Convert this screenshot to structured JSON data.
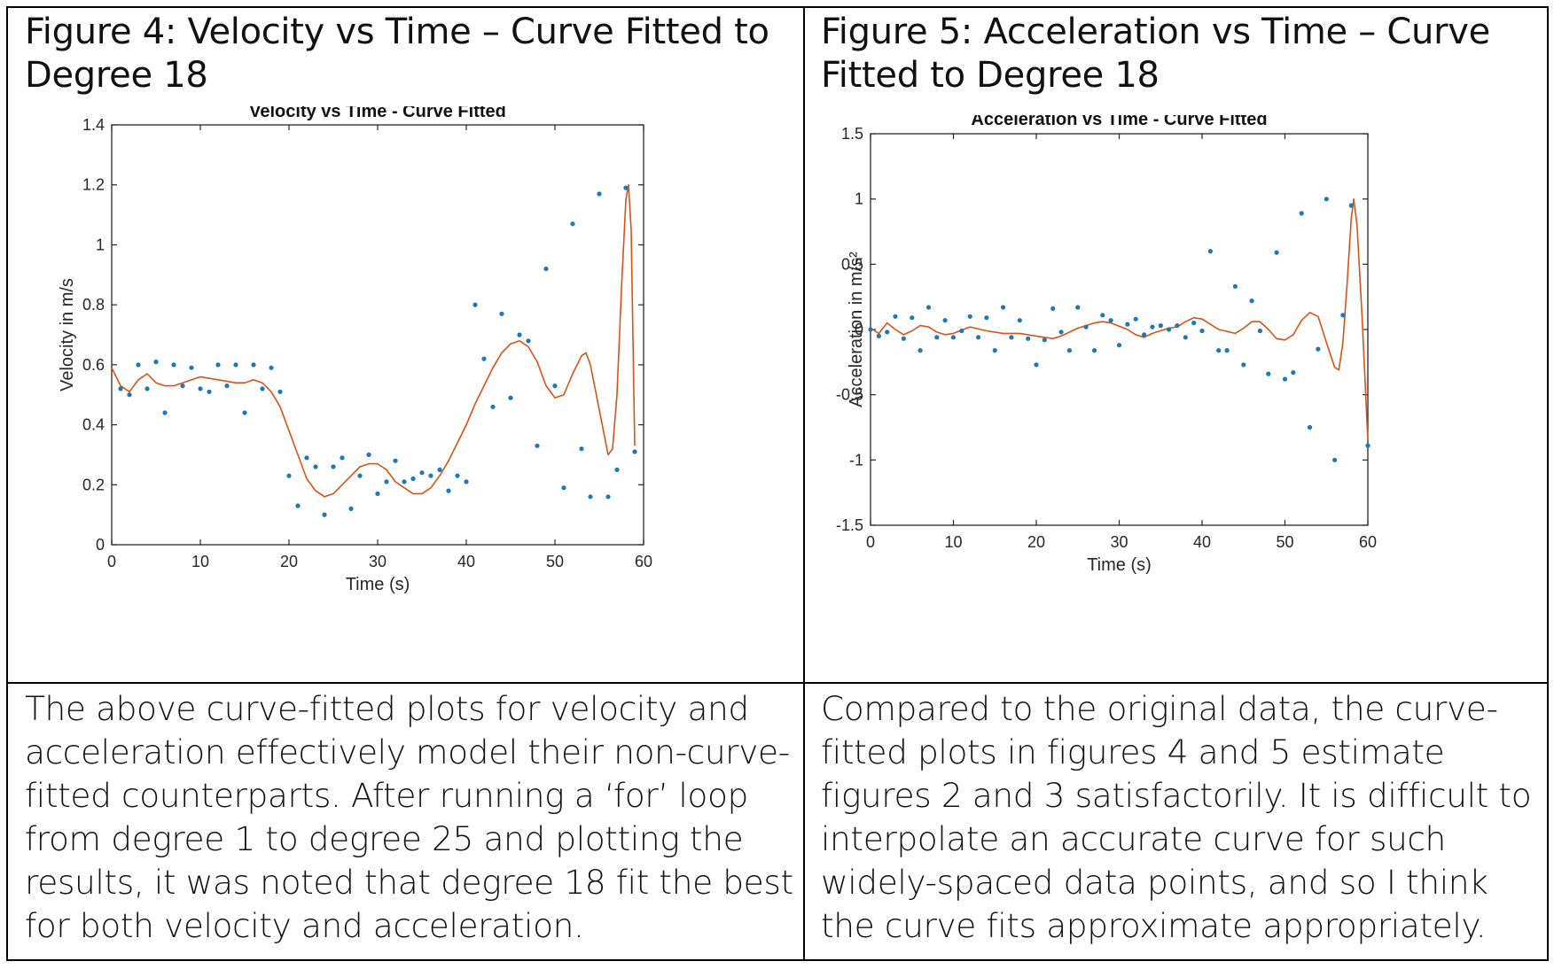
{
  "figure4": {
    "heading": "Figure 4: Velocity vs Time – Curve Fitted to Degree 18"
  },
  "figure5": {
    "heading": "Figure 5: Acceleration vs Time – Curve Fitted to Degree 18"
  },
  "text_left": "The above curve-fitted plots for velocity and acceleration effectively model their non-curve-fitted counterparts. After running a ‘for’ loop from degree 1 to degree 25 and plotting the results, it was noted that degree 18 fit the best for both velocity and acceleration.",
  "text_right": "Compared to the original data, the curve-fitted plots in figures 4 and 5 estimate figures 2 and 3 satisfactorily. It is difficult to interpolate an accurate curve for such widely-spaced data points, and so I think the curve fits approximate appropriately.",
  "colors": {
    "points": "#1f77b4",
    "curve": "#d95319",
    "axis": "#262626",
    "border": "#000000"
  },
  "chart_data": [
    {
      "type": "scatter",
      "title": "Velocity vs Time - Curve Fitted",
      "xlabel": "Time (s)",
      "ylabel": "Velocity in m/s",
      "xlim": [
        0,
        60
      ],
      "ylim": [
        0,
        1.4
      ],
      "xticks": [
        0,
        10,
        20,
        30,
        40,
        50,
        60
      ],
      "yticks": [
        0,
        0.2,
        0.4,
        0.6,
        0.8,
        1,
        1.2,
        1.4
      ],
      "ytick_labels": [
        "0",
        "0.2",
        "0.4",
        "0.6",
        "0.8",
        "1",
        "1.2",
        "1.4"
      ],
      "grid": false,
      "legend": "none",
      "points": [
        [
          1,
          0.52
        ],
        [
          2,
          0.5
        ],
        [
          3,
          0.6
        ],
        [
          4,
          0.52
        ],
        [
          5,
          0.61
        ],
        [
          6,
          0.44
        ],
        [
          7,
          0.6
        ],
        [
          8,
          0.53
        ],
        [
          9,
          0.59
        ],
        [
          10,
          0.52
        ],
        [
          11,
          0.51
        ],
        [
          12,
          0.6
        ],
        [
          13,
          0.53
        ],
        [
          14,
          0.6
        ],
        [
          15,
          0.44
        ],
        [
          16,
          0.6
        ],
        [
          17,
          0.52
        ],
        [
          18,
          0.59
        ],
        [
          19,
          0.51
        ],
        [
          20,
          0.23
        ],
        [
          21,
          0.13
        ],
        [
          22,
          0.29
        ],
        [
          23,
          0.26
        ],
        [
          24,
          0.1
        ],
        [
          25,
          0.26
        ],
        [
          26,
          0.29
        ],
        [
          27,
          0.12
        ],
        [
          28,
          0.23
        ],
        [
          29,
          0.3
        ],
        [
          30,
          0.17
        ],
        [
          31,
          0.21
        ],
        [
          32,
          0.28
        ],
        [
          33,
          0.21
        ],
        [
          34,
          0.22
        ],
        [
          35,
          0.24
        ],
        [
          36,
          0.23
        ],
        [
          37,
          0.25
        ],
        [
          38,
          0.18
        ],
        [
          39,
          0.23
        ],
        [
          40,
          0.21
        ],
        [
          41,
          0.8
        ],
        [
          42,
          0.62
        ],
        [
          43,
          0.46
        ],
        [
          44,
          0.77
        ],
        [
          45,
          0.49
        ],
        [
          46,
          0.7
        ],
        [
          47,
          0.68
        ],
        [
          48,
          0.33
        ],
        [
          49,
          0.92
        ],
        [
          50,
          0.53
        ],
        [
          51,
          0.19
        ],
        [
          52,
          1.07
        ],
        [
          53,
          0.32
        ],
        [
          54,
          0.16
        ],
        [
          55,
          1.17
        ],
        [
          56,
          0.16
        ],
        [
          57,
          0.25
        ],
        [
          58,
          1.19
        ],
        [
          59,
          0.31
        ]
      ],
      "fit_curve": [
        [
          0,
          0.59
        ],
        [
          1,
          0.53
        ],
        [
          2,
          0.51
        ],
        [
          3,
          0.55
        ],
        [
          4,
          0.57
        ],
        [
          5,
          0.54
        ],
        [
          6,
          0.53
        ],
        [
          7,
          0.53
        ],
        [
          8,
          0.54
        ],
        [
          10,
          0.56
        ],
        [
          12,
          0.55
        ],
        [
          14,
          0.54
        ],
        [
          15,
          0.54
        ],
        [
          16,
          0.55
        ],
        [
          17,
          0.54
        ],
        [
          18,
          0.51
        ],
        [
          19,
          0.46
        ],
        [
          20,
          0.38
        ],
        [
          21,
          0.3
        ],
        [
          22,
          0.22
        ],
        [
          23,
          0.18
        ],
        [
          24,
          0.16
        ],
        [
          25,
          0.17
        ],
        [
          26,
          0.2
        ],
        [
          27,
          0.23
        ],
        [
          28,
          0.26
        ],
        [
          29,
          0.27
        ],
        [
          30,
          0.27
        ],
        [
          31,
          0.25
        ],
        [
          32,
          0.21
        ],
        [
          33,
          0.19
        ],
        [
          34,
          0.17
        ],
        [
          35,
          0.17
        ],
        [
          36,
          0.19
        ],
        [
          37,
          0.23
        ],
        [
          38,
          0.28
        ],
        [
          39,
          0.34
        ],
        [
          40,
          0.4
        ],
        [
          41,
          0.47
        ],
        [
          42,
          0.53
        ],
        [
          43,
          0.59
        ],
        [
          44,
          0.64
        ],
        [
          45,
          0.67
        ],
        [
          46,
          0.68
        ],
        [
          47,
          0.66
        ],
        [
          48,
          0.61
        ],
        [
          49,
          0.53
        ],
        [
          50,
          0.49
        ],
        [
          51,
          0.5
        ],
        [
          52,
          0.57
        ],
        [
          53,
          0.63
        ],
        [
          53.5,
          0.64
        ],
        [
          54,
          0.6
        ],
        [
          55,
          0.45
        ],
        [
          56,
          0.3
        ],
        [
          56.5,
          0.32
        ],
        [
          57,
          0.5
        ],
        [
          57.5,
          0.85
        ],
        [
          58,
          1.15
        ],
        [
          58.3,
          1.2
        ],
        [
          58.6,
          1.05
        ],
        [
          59,
          0.33
        ]
      ]
    },
    {
      "type": "scatter",
      "title": "Acceleration vs Time - Curve Fitted",
      "xlabel": "Time (s)",
      "ylabel": "Acceleration in m/s²",
      "xlim": [
        0,
        60
      ],
      "ylim": [
        -1.5,
        1.5
      ],
      "xticks": [
        0,
        10,
        20,
        30,
        40,
        50,
        60
      ],
      "yticks": [
        -1.5,
        -1,
        -0.5,
        0,
        0.5,
        1,
        1.5
      ],
      "ytick_labels": [
        "-1.5",
        "-1",
        "-0.5",
        "0",
        "0.5",
        "1",
        "1.5"
      ],
      "grid": false,
      "legend": "none",
      "points": [
        [
          0,
          0.0
        ],
        [
          1,
          -0.05
        ],
        [
          2,
          -0.02
        ],
        [
          3,
          0.1
        ],
        [
          4,
          -0.07
        ],
        [
          5,
          0.09
        ],
        [
          6,
          -0.16
        ],
        [
          7,
          0.17
        ],
        [
          8,
          -0.06
        ],
        [
          9,
          0.07
        ],
        [
          10,
          -0.06
        ],
        [
          11,
          -0.01
        ],
        [
          12,
          0.1
        ],
        [
          13,
          -0.06
        ],
        [
          14,
          0.09
        ],
        [
          15,
          -0.16
        ],
        [
          16,
          0.17
        ],
        [
          17,
          -0.06
        ],
        [
          18,
          0.07
        ],
        [
          19,
          -0.07
        ],
        [
          20,
          -0.27
        ],
        [
          21,
          -0.08
        ],
        [
          22,
          0.16
        ],
        [
          23,
          -0.02
        ],
        [
          24,
          -0.16
        ],
        [
          25,
          0.17
        ],
        [
          26,
          0.02
        ],
        [
          27,
          -0.16
        ],
        [
          28,
          0.11
        ],
        [
          29,
          0.07
        ],
        [
          30,
          -0.12
        ],
        [
          31,
          0.04
        ],
        [
          32,
          0.08
        ],
        [
          33,
          -0.04
        ],
        [
          34,
          0.02
        ],
        [
          35,
          0.03
        ],
        [
          36,
          0.0
        ],
        [
          37,
          0.03
        ],
        [
          38,
          -0.06
        ],
        [
          39,
          0.05
        ],
        [
          40,
          -0.01
        ],
        [
          41,
          0.6
        ],
        [
          42,
          -0.16
        ],
        [
          43,
          -0.16
        ],
        [
          44,
          0.33
        ],
        [
          45,
          -0.27
        ],
        [
          46,
          0.22
        ],
        [
          47,
          -0.01
        ],
        [
          48,
          -0.34
        ],
        [
          49,
          0.59
        ],
        [
          50,
          -0.38
        ],
        [
          51,
          -0.33
        ],
        [
          52,
          0.89
        ],
        [
          53,
          -0.75
        ],
        [
          54,
          -0.15
        ],
        [
          55,
          1.0
        ],
        [
          56,
          -1.0
        ],
        [
          57,
          0.11
        ],
        [
          58,
          0.95
        ],
        [
          60,
          -0.89
        ]
      ],
      "fit_curve": [
        [
          0,
          0.01
        ],
        [
          1,
          -0.03
        ],
        [
          2,
          0.05
        ],
        [
          3,
          0.0
        ],
        [
          4,
          -0.04
        ],
        [
          5,
          -0.01
        ],
        [
          6,
          0.03
        ],
        [
          7,
          0.02
        ],
        [
          8,
          -0.02
        ],
        [
          9,
          -0.04
        ],
        [
          10,
          -0.03
        ],
        [
          12,
          0.02
        ],
        [
          14,
          -0.01
        ],
        [
          16,
          -0.03
        ],
        [
          18,
          -0.03
        ],
        [
          20,
          -0.05
        ],
        [
          22,
          -0.07
        ],
        [
          23,
          -0.05
        ],
        [
          25,
          0.01
        ],
        [
          27,
          0.05
        ],
        [
          28,
          0.06
        ],
        [
          29,
          0.05
        ],
        [
          31,
          0.0
        ],
        [
          32,
          -0.04
        ],
        [
          33,
          -0.06
        ],
        [
          34,
          -0.03
        ],
        [
          36,
          0.01
        ],
        [
          37,
          0.02
        ],
        [
          38,
          0.06
        ],
        [
          39,
          0.09
        ],
        [
          40,
          0.08
        ],
        [
          41,
          0.04
        ],
        [
          42,
          0.0
        ],
        [
          44,
          -0.03
        ],
        [
          45,
          0.01
        ],
        [
          46,
          0.06
        ],
        [
          47,
          0.06
        ],
        [
          48,
          0.0
        ],
        [
          49,
          -0.07
        ],
        [
          50,
          -0.08
        ],
        [
          51,
          -0.04
        ],
        [
          52,
          0.07
        ],
        [
          53,
          0.13
        ],
        [
          54,
          0.1
        ],
        [
          55,
          -0.1
        ],
        [
          56,
          -0.29
        ],
        [
          56.5,
          -0.31
        ],
        [
          57,
          -0.1
        ],
        [
          57.5,
          0.35
        ],
        [
          58,
          0.85
        ],
        [
          58.3,
          1.0
        ],
        [
          58.7,
          0.8
        ],
        [
          59.3,
          0.1
        ],
        [
          60,
          -0.85
        ]
      ]
    }
  ]
}
